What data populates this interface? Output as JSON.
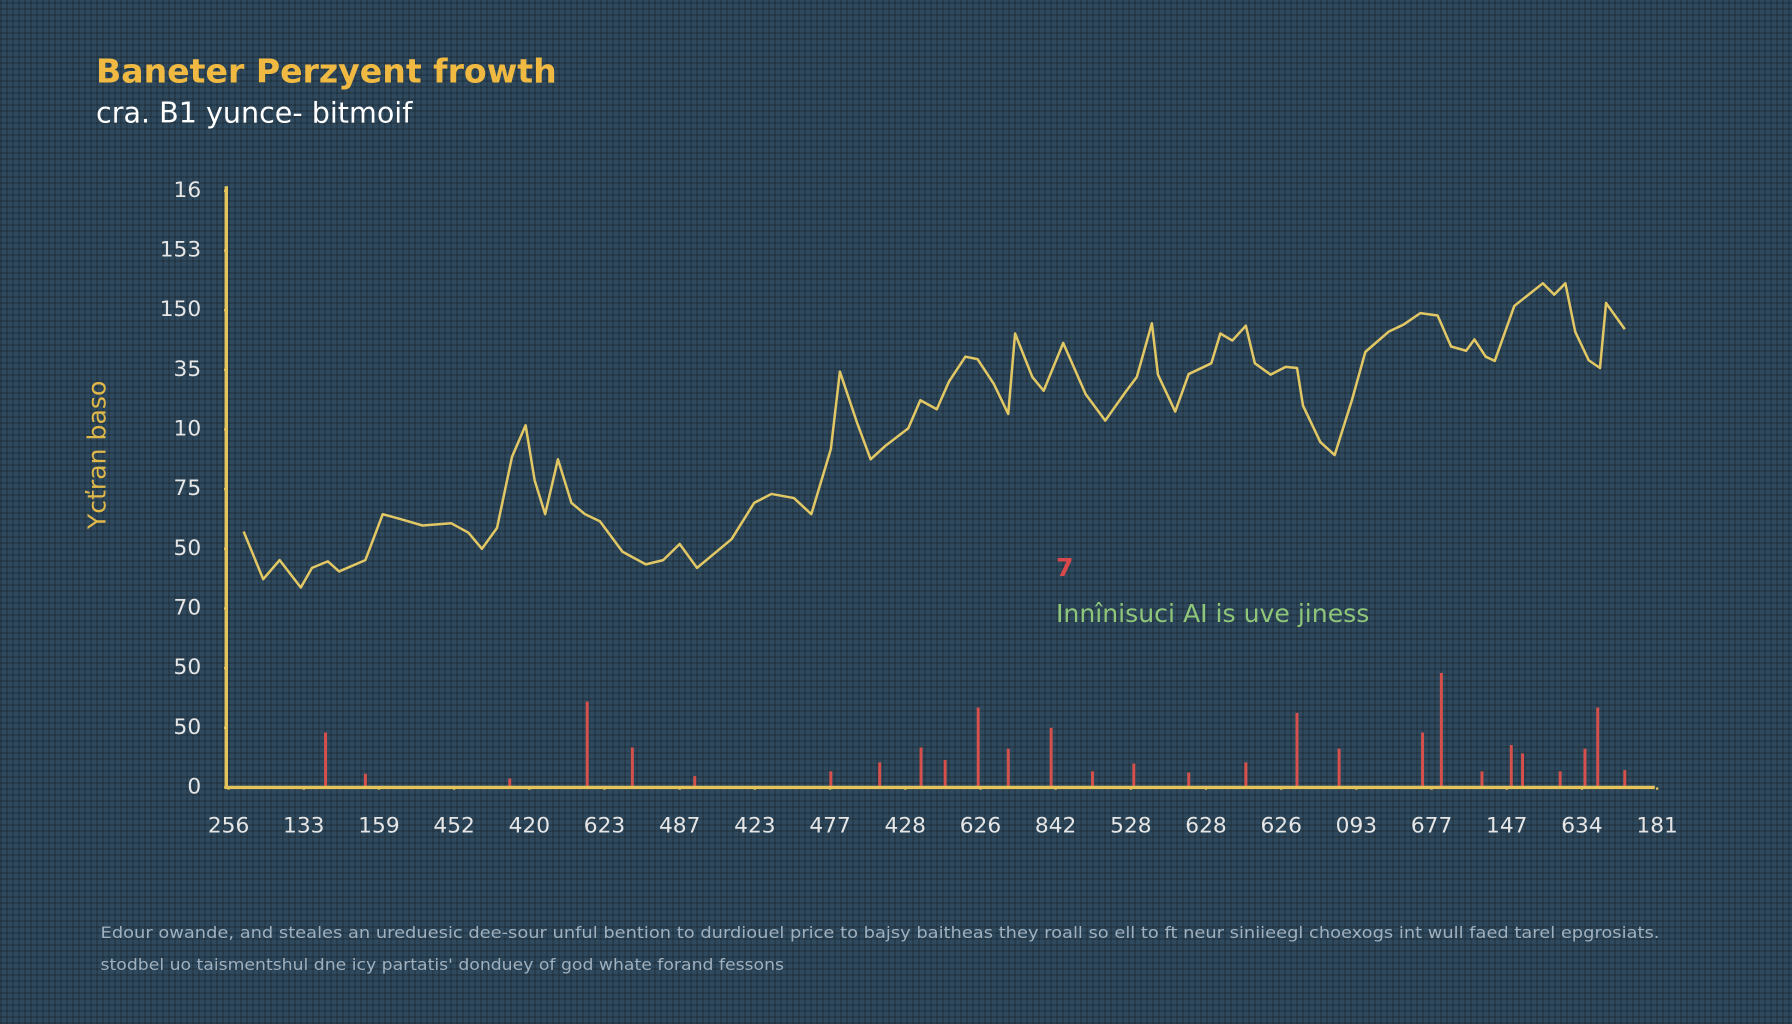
{
  "chart_data": {
    "type": "line",
    "title": "Baneter Perzyent frowth",
    "subtitle": "cra. B1 yunce- bitmoif",
    "y_label": "Ycťran baso",
    "xlim": [
      0,
      19
    ],
    "xticks": [
      {
        "value": 0,
        "label": "256"
      },
      {
        "value": 1,
        "label": "133"
      },
      {
        "value": 2,
        "label": "159"
      },
      {
        "value": 3,
        "label": "452"
      },
      {
        "value": 4,
        "label": "420"
      },
      {
        "value": 5,
        "label": "623"
      },
      {
        "value": 6,
        "label": "487"
      },
      {
        "value": 7,
        "label": "423"
      },
      {
        "value": 8,
        "label": "477"
      },
      {
        "value": 9,
        "label": "428"
      },
      {
        "value": 10,
        "label": "626"
      },
      {
        "value": 11,
        "label": "842"
      },
      {
        "value": 12,
        "label": "528"
      },
      {
        "value": 13,
        "label": "628"
      },
      {
        "value": 14,
        "label": "626"
      },
      {
        "value": 15,
        "label": "093"
      },
      {
        "value": 16,
        "label": "677"
      },
      {
        "value": 17,
        "label": "147"
      },
      {
        "value": 18,
        "label": "634"
      },
      {
        "value": 19,
        "label": "181"
      }
    ],
    "ylim": [
      0,
      10
    ],
    "yticks": [
      0,
      {
        "value": 1,
        "label": "50"
      },
      {
        "value": 2,
        "label": "50"
      },
      {
        "value": 3,
        "label": "70"
      },
      {
        "value": 4,
        "label": "50"
      },
      {
        "value": 5,
        "label": "75"
      },
      {
        "value": 6,
        "label": "10"
      },
      {
        "value": 7,
        "label": "35"
      },
      {
        "value": 8,
        "label": "150"
      },
      {
        "value": 9,
        "label": "153"
      },
      {
        "value": 10,
        "label": "16"
      }
    ],
    "axis_color": "#e3c35a",
    "series": [
      {
        "type": "line",
        "color": "#e2c765",
        "x": [
          0.2,
          0.46,
          0.68,
          0.96,
          1.11,
          1.32,
          1.47,
          1.82,
          2.05,
          2.28,
          2.58,
          2.96,
          3.19,
          3.37,
          3.57,
          3.77,
          3.95,
          4.07,
          4.21,
          4.38,
          4.56,
          4.74,
          4.94,
          5.24,
          5.55,
          5.78,
          6.0,
          6.23,
          6.69,
          6.99,
          7.22,
          7.52,
          7.75,
          8.01,
          8.13,
          8.36,
          8.54,
          8.74,
          9.04,
          9.2,
          9.42,
          9.58,
          9.8,
          9.96,
          10.18,
          10.37,
          10.46,
          10.69,
          10.84,
          11.1,
          11.4,
          11.66,
          11.93,
          12.08,
          12.28,
          12.36,
          12.59,
          12.77,
          13.07,
          13.19,
          13.35,
          13.53,
          13.65,
          13.86,
          14.06,
          14.21,
          14.29,
          14.52,
          14.71,
          14.94,
          15.12,
          15.43,
          15.63,
          15.85,
          16.08,
          16.26,
          16.46,
          16.57,
          16.72,
          16.84,
          17.1,
          17.33,
          17.48,
          17.63,
          17.78,
          17.91,
          18.09,
          18.24,
          18.32,
          18.57
        ],
        "values": [
          4.29,
          3.49,
          3.81,
          3.35,
          3.68,
          3.79,
          3.62,
          3.81,
          4.58,
          4.5,
          4.39,
          4.43,
          4.27,
          4.0,
          4.35,
          5.54,
          6.07,
          5.15,
          4.58,
          5.5,
          4.77,
          4.58,
          4.46,
          3.95,
          3.74,
          3.81,
          4.08,
          3.68,
          4.16,
          4.77,
          4.92,
          4.85,
          4.58,
          5.67,
          6.97,
          6.11,
          5.5,
          5.73,
          6.02,
          6.49,
          6.34,
          6.8,
          7.22,
          7.18,
          6.76,
          6.26,
          7.61,
          6.88,
          6.65,
          7.45,
          6.59,
          6.15,
          6.63,
          6.88,
          7.78,
          6.92,
          6.3,
          6.93,
          7.11,
          7.61,
          7.49,
          7.74,
          7.11,
          6.92,
          7.05,
          7.03,
          6.4,
          5.79,
          5.57,
          6.49,
          7.3,
          7.64,
          7.76,
          7.95,
          7.91,
          7.39,
          7.32,
          7.51,
          7.22,
          7.15,
          8.07,
          8.3,
          8.45,
          8.26,
          8.45,
          7.64,
          7.16,
          7.03,
          8.12,
          7.68
        ]
      },
      {
        "type": "bar",
        "color": "#d6504c",
        "x": [
          1.29,
          1.82,
          3.74,
          4.77,
          5.37,
          6.2,
          8.01,
          8.66,
          9.21,
          9.53,
          9.97,
          10.37,
          10.94,
          11.49,
          12.04,
          12.77,
          13.53,
          14.21,
          14.77,
          15.88,
          16.13,
          16.67,
          17.06,
          17.21,
          17.71,
          18.04,
          18.21,
          18.57
        ],
        "values": [
          0.92,
          0.23,
          0.15,
          1.44,
          0.67,
          0.19,
          0.27,
          0.42,
          0.67,
          0.46,
          1.34,
          0.65,
          1.0,
          0.27,
          0.4,
          0.25,
          0.42,
          1.25,
          0.65,
          0.92,
          1.92,
          0.27,
          0.71,
          0.57,
          0.27,
          0.65,
          1.34,
          0.29
        ]
      }
    ],
    "annotations": [
      {
        "text": "7",
        "color": "#d9484a"
      },
      {
        "text": "Innînisuci AI is uve jiness",
        "color": "#8fc67a"
      }
    ],
    "footer": [
      "Edour owande, and steales an ureduesic dee-sour unful bention to durdiouel price to bajsy baitheas they roall so ell to ft neur siniieegl choexogs int wull faed tarel epgrosiats.",
      "stodbel uo taismentshul dne icy partatis' donduey of god whate forand fessons"
    ]
  }
}
